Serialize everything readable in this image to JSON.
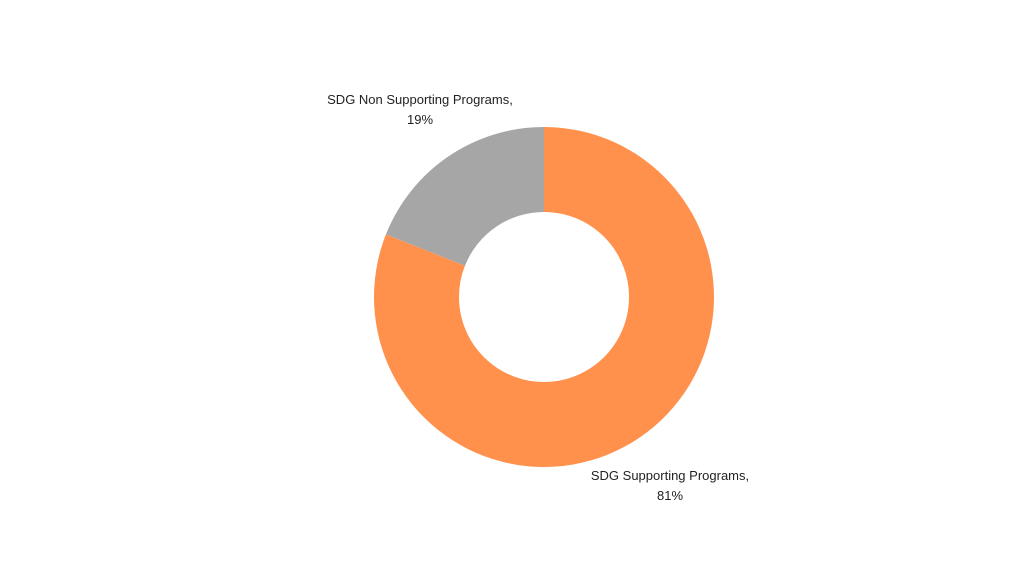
{
  "chart_data": {
    "type": "pie",
    "donut": true,
    "slices": [
      {
        "label": "SDG Supporting Programs,",
        "percent_label": "81%",
        "value": 81,
        "color": "#FF914D"
      },
      {
        "label": "SDG Non Supporting Programs,",
        "percent_label": "19%",
        "value": 19,
        "color": "#A6A6A6"
      }
    ],
    "start_angle_deg": 0,
    "direction": "clockwise",
    "title": "",
    "legend": "none"
  }
}
